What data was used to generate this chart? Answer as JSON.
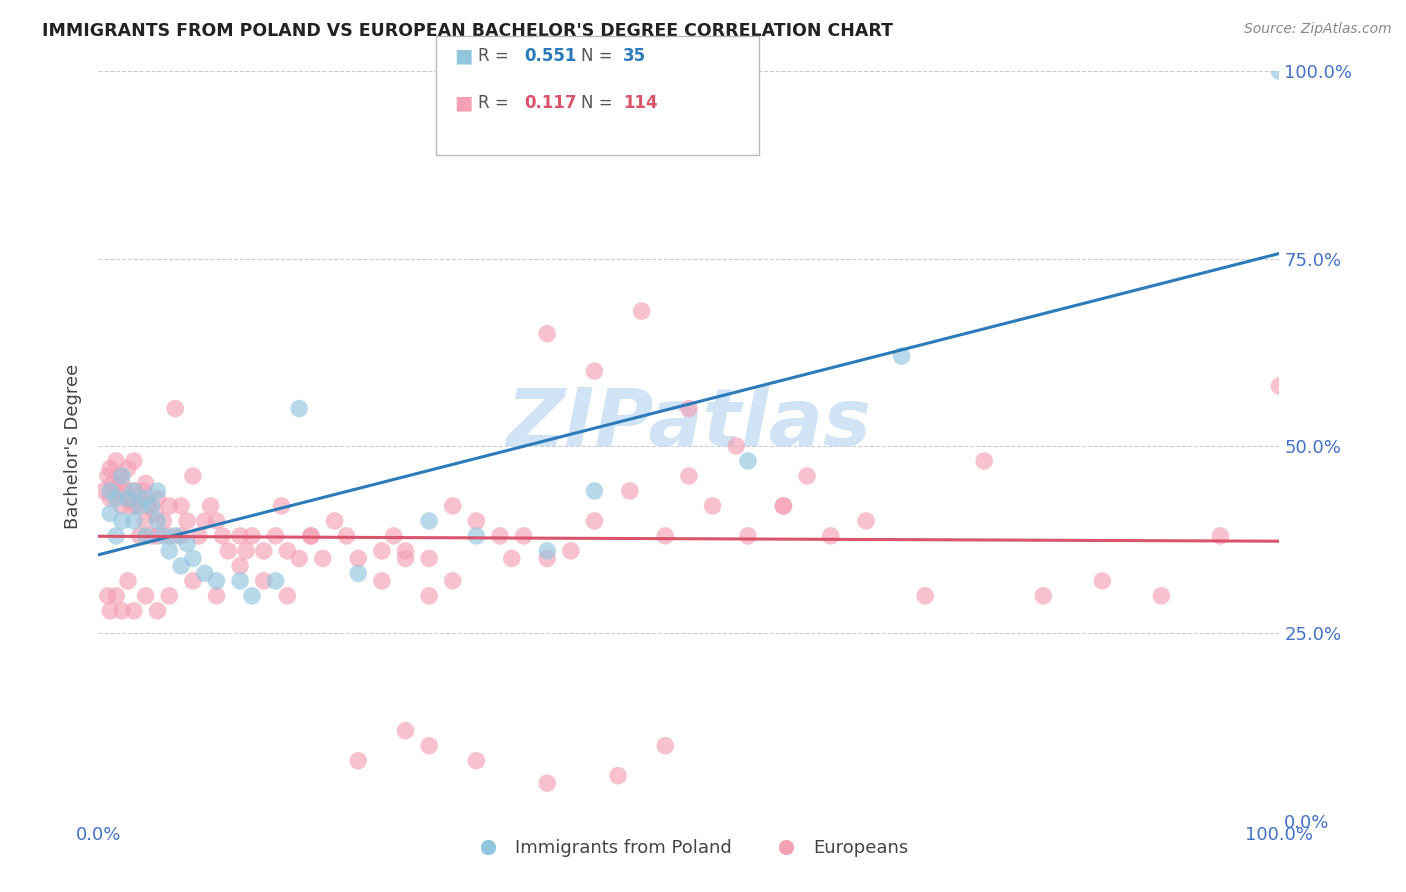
{
  "title": "IMMIGRANTS FROM POLAND VS EUROPEAN BACHELOR'S DEGREE CORRELATION CHART",
  "source": "Source: ZipAtlas.com",
  "ylabel": "Bachelor's Degree",
  "ytick_labels": [
    "0.0%",
    "25.0%",
    "50.0%",
    "75.0%",
    "100.0%"
  ],
  "ytick_values": [
    0,
    0.25,
    0.5,
    0.75,
    1.0
  ],
  "legend_label_blue": "Immigrants from Poland",
  "legend_label_pink": "Europeans",
  "r_blue": 0.551,
  "n_blue": 35,
  "r_pink": 0.117,
  "n_pink": 114,
  "color_blue": "#92c5de",
  "color_pink": "#f4a0b5",
  "line_color_blue": "#2b7bba",
  "line_color_pink": "#d9536a",
  "watermark_color": "#d0e4f5",
  "title_color": "#222222",
  "axis_label_color": "#4472c4",
  "background_color": "#ffffff",
  "grid_color": "#cccccc",
  "blue_x": [
    0.01,
    0.01,
    0.015,
    0.015,
    0.02,
    0.02,
    0.025,
    0.03,
    0.03,
    0.035,
    0.04,
    0.04,
    0.045,
    0.05,
    0.05,
    0.055,
    0.06,
    0.065,
    0.07,
    0.075,
    0.08,
    0.09,
    0.1,
    0.12,
    0.13,
    0.15,
    0.17,
    0.22,
    0.28,
    0.32,
    0.38,
    0.42,
    0.55,
    0.68,
    1.0
  ],
  "blue_y": [
    0.44,
    0.41,
    0.43,
    0.38,
    0.46,
    0.4,
    0.43,
    0.44,
    0.4,
    0.42,
    0.43,
    0.38,
    0.42,
    0.44,
    0.4,
    0.38,
    0.36,
    0.38,
    0.34,
    0.37,
    0.35,
    0.33,
    0.32,
    0.32,
    0.3,
    0.32,
    0.55,
    0.33,
    0.4,
    0.38,
    0.36,
    0.44,
    0.48,
    0.62,
    1.0
  ],
  "pink_x": [
    0.005,
    0.008,
    0.01,
    0.01,
    0.012,
    0.015,
    0.015,
    0.018,
    0.02,
    0.02,
    0.022,
    0.025,
    0.025,
    0.028,
    0.03,
    0.03,
    0.032,
    0.035,
    0.035,
    0.038,
    0.04,
    0.04,
    0.042,
    0.045,
    0.048,
    0.05,
    0.05,
    0.055,
    0.06,
    0.06,
    0.065,
    0.07,
    0.07,
    0.075,
    0.08,
    0.085,
    0.09,
    0.095,
    0.1,
    0.105,
    0.11,
    0.12,
    0.125,
    0.13,
    0.14,
    0.15,
    0.155,
    0.16,
    0.17,
    0.18,
    0.19,
    0.2,
    0.21,
    0.22,
    0.24,
    0.25,
    0.26,
    0.28,
    0.3,
    0.32,
    0.34,
    0.36,
    0.38,
    0.4,
    0.42,
    0.45,
    0.48,
    0.5,
    0.52,
    0.55,
    0.58,
    0.6,
    0.62,
    0.65,
    0.7,
    0.75,
    0.8,
    0.85,
    0.9,
    0.95,
    0.35,
    0.3,
    0.28,
    0.26,
    0.24,
    0.18,
    0.16,
    0.14,
    0.12,
    0.1,
    0.08,
    0.06,
    0.05,
    0.04,
    0.03,
    0.025,
    0.02,
    0.015,
    0.01,
    0.008,
    0.38,
    0.42,
    0.46,
    0.5,
    0.54,
    0.58,
    0.48,
    0.44,
    0.38,
    0.32,
    0.28,
    0.26,
    0.22,
    1.0
  ],
  "pink_y": [
    0.44,
    0.46,
    0.43,
    0.47,
    0.45,
    0.44,
    0.48,
    0.46,
    0.45,
    0.42,
    0.44,
    0.43,
    0.47,
    0.42,
    0.44,
    0.48,
    0.42,
    0.43,
    0.38,
    0.44,
    0.4,
    0.45,
    0.42,
    0.38,
    0.41,
    0.43,
    0.38,
    0.4,
    0.42,
    0.38,
    0.55,
    0.42,
    0.38,
    0.4,
    0.46,
    0.38,
    0.4,
    0.42,
    0.4,
    0.38,
    0.36,
    0.38,
    0.36,
    0.38,
    0.36,
    0.38,
    0.42,
    0.36,
    0.35,
    0.38,
    0.35,
    0.4,
    0.38,
    0.35,
    0.36,
    0.38,
    0.36,
    0.35,
    0.42,
    0.4,
    0.38,
    0.38,
    0.35,
    0.36,
    0.4,
    0.44,
    0.38,
    0.46,
    0.42,
    0.38,
    0.42,
    0.46,
    0.38,
    0.4,
    0.3,
    0.48,
    0.3,
    0.32,
    0.3,
    0.38,
    0.35,
    0.32,
    0.3,
    0.35,
    0.32,
    0.38,
    0.3,
    0.32,
    0.34,
    0.3,
    0.32,
    0.3,
    0.28,
    0.3,
    0.28,
    0.32,
    0.28,
    0.3,
    0.28,
    0.3,
    0.65,
    0.6,
    0.68,
    0.55,
    0.5,
    0.42,
    0.1,
    0.06,
    0.05,
    0.08,
    0.1,
    0.12,
    0.08,
    0.58
  ]
}
